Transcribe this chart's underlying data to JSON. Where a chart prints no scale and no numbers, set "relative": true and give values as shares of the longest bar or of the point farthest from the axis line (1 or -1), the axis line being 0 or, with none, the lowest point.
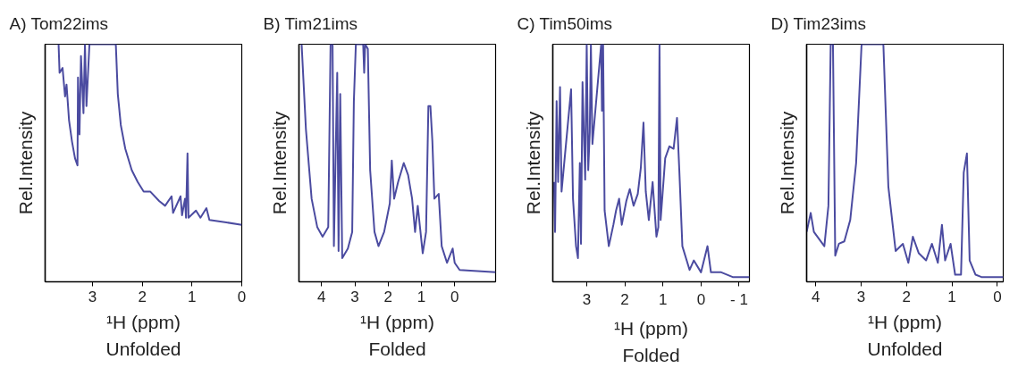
{
  "chart_data": [
    {
      "type": "line",
      "title": "A)  Tom22ims",
      "xlabel": "¹H (ppm)",
      "ylabel": "Rel.Intensity",
      "annotations": [
        "Unfolded"
      ],
      "relative": true,
      "tick_labels": "x",
      "xlim": [
        3.95,
        0
      ],
      "xticks": [
        3,
        2,
        1,
        0
      ],
      "x": [
        3.68,
        3.66,
        3.6,
        3.55,
        3.52,
        3.47,
        3.41,
        3.35,
        3.3,
        3.29,
        3.26,
        3.23,
        3.18,
        3.15,
        3.12,
        3.06,
        2.8,
        2.53,
        2.49,
        2.43,
        2.34,
        2.21,
        2.09,
        1.97,
        1.84,
        1.66,
        1.54,
        1.41,
        1.38,
        1.23,
        1.2,
        1.14,
        1.12,
        1.09,
        1.07,
        0.92,
        0.83,
        0.71,
        0.65,
        0.31,
        0.0
      ],
      "series": [
        {
          "color": "#4b4ba0",
          "values": [
            1.0,
            0.88,
            0.9,
            0.78,
            0.83,
            0.68,
            0.59,
            0.52,
            0.49,
            0.86,
            0.62,
            0.95,
            0.71,
            1.0,
            0.74,
            1.0,
            1.0,
            1.0,
            0.79,
            0.66,
            0.56,
            0.47,
            0.42,
            0.38,
            0.38,
            0.34,
            0.32,
            0.36,
            0.29,
            0.36,
            0.28,
            0.35,
            0.27,
            0.54,
            0.27,
            0.3,
            0.27,
            0.31,
            0.26,
            0.25,
            0.24
          ]
        }
      ]
    },
    {
      "type": "line",
      "title": "B)  Tim21ims",
      "xlabel": "¹H (ppm)",
      "ylabel": "Rel.Intensity",
      "annotations": [
        "Folded"
      ],
      "relative": true,
      "tick_labels": "x",
      "xlim": [
        4.68,
        -1.23
      ],
      "xticks": [
        4,
        3,
        2,
        1,
        0
      ],
      "x": [
        4.6,
        4.47,
        4.3,
        4.13,
        3.97,
        3.8,
        3.73,
        3.67,
        3.63,
        3.53,
        3.49,
        3.44,
        3.38,
        3.21,
        3.08,
        3.03,
        2.97,
        2.75,
        2.72,
        2.69,
        2.61,
        2.54,
        2.41,
        2.29,
        2.12,
        1.95,
        1.89,
        1.82,
        1.7,
        1.53,
        1.4,
        1.28,
        1.19,
        1.11,
        0.96,
        0.86,
        0.79,
        0.73,
        0.67,
        0.61,
        0.48,
        0.39,
        0.23,
        0.06,
        0.0,
        -0.15,
        -1.23
      ],
      "series": [
        {
          "color": "#4b4ba0",
          "values": [
            1.0,
            0.64,
            0.35,
            0.23,
            0.19,
            0.23,
            1.0,
            1.0,
            0.15,
            0.88,
            0.13,
            0.79,
            0.1,
            0.14,
            0.21,
            0.76,
            1.0,
            1.0,
            0.88,
            1.0,
            0.98,
            0.47,
            0.21,
            0.15,
            0.21,
            0.33,
            0.51,
            0.35,
            0.42,
            0.5,
            0.45,
            0.35,
            0.21,
            0.32,
            0.12,
            0.21,
            0.74,
            0.74,
            0.59,
            0.35,
            0.37,
            0.15,
            0.08,
            0.14,
            0.08,
            0.05,
            0.04
          ]
        }
      ]
    },
    {
      "type": "line",
      "title": "C)  Tim50ims",
      "xlabel": "¹H (ppm)",
      "ylabel": "Rel.Intensity",
      "annotations": [
        "Folded"
      ],
      "relative": true,
      "tick_labels": "x",
      "xlim": [
        3.89,
        -1.27
      ],
      "xticks": [
        3,
        2,
        1,
        0,
        {
          "value": -1,
          "label": "- 1"
        }
      ],
      "x": [
        3.86,
        3.83,
        3.79,
        3.75,
        3.7,
        3.66,
        3.41,
        3.36,
        3.28,
        3.23,
        3.18,
        3.15,
        3.11,
        3.04,
        3.0,
        2.96,
        2.92,
        2.89,
        2.85,
        2.62,
        2.6,
        2.57,
        2.53,
        2.42,
        2.3,
        2.23,
        2.15,
        2.08,
        1.96,
        1.87,
        1.77,
        1.66,
        1.58,
        1.51,
        1.45,
        1.37,
        1.27,
        1.17,
        1.12,
        1.09,
        1.06,
        0.94,
        0.83,
        0.72,
        0.63,
        0.57,
        0.49,
        0.3,
        0.19,
        0.0,
        -0.17,
        -0.26,
        -0.53,
        -0.83,
        -1.27
      ],
      "series": [
        {
          "color": "#4b4ba0",
          "values": [
            0.42,
            0.21,
            0.76,
            0.42,
            0.82,
            0.38,
            0.81,
            0.35,
            0.15,
            0.1,
            0.5,
            0.16,
            0.84,
            0.43,
            1.0,
            0.47,
            0.63,
            1.0,
            0.58,
            1.0,
            0.72,
            1.0,
            0.3,
            0.15,
            0.24,
            0.3,
            0.35,
            0.24,
            0.34,
            0.39,
            0.32,
            0.37,
            0.48,
            0.67,
            0.38,
            0.26,
            0.42,
            0.19,
            0.23,
            1.0,
            0.26,
            0.52,
            0.57,
            0.56,
            0.69,
            0.47,
            0.15,
            0.05,
            0.09,
            0.04,
            0.15,
            0.04,
            0.04,
            0.02,
            0.02
          ]
        }
      ]
    },
    {
      "type": "line",
      "title": "D)  Tim23ims",
      "xlabel": "¹H (ppm)",
      "ylabel": "Rel.Intensity",
      "annotations": [
        "Unfolded"
      ],
      "relative": true,
      "tick_labels": "x",
      "xlim": [
        4.2,
        -0.13
      ],
      "xticks": [
        4,
        3,
        2,
        1,
        0
      ],
      "x": [
        4.2,
        4.11,
        4.04,
        3.81,
        3.72,
        3.67,
        3.62,
        3.57,
        3.49,
        3.37,
        3.24,
        3.11,
        2.99,
        2.51,
        2.4,
        2.24,
        2.08,
        1.96,
        1.86,
        1.73,
        1.57,
        1.44,
        1.31,
        1.22,
        1.15,
        1.03,
        0.93,
        0.8,
        0.74,
        0.67,
        0.61,
        0.48,
        0.35,
        -0.13
      ],
      "series": [
        {
          "color": "#4b4ba0",
          "values": [
            0.21,
            0.29,
            0.21,
            0.15,
            0.32,
            1.0,
            1.0,
            0.11,
            0.16,
            0.17,
            0.26,
            0.5,
            1.0,
            1.0,
            0.4,
            0.13,
            0.16,
            0.08,
            0.19,
            0.12,
            0.09,
            0.16,
            0.08,
            0.24,
            0.09,
            0.16,
            0.03,
            0.03,
            0.46,
            0.54,
            0.09,
            0.03,
            0.02,
            0.02
          ]
        }
      ]
    }
  ]
}
